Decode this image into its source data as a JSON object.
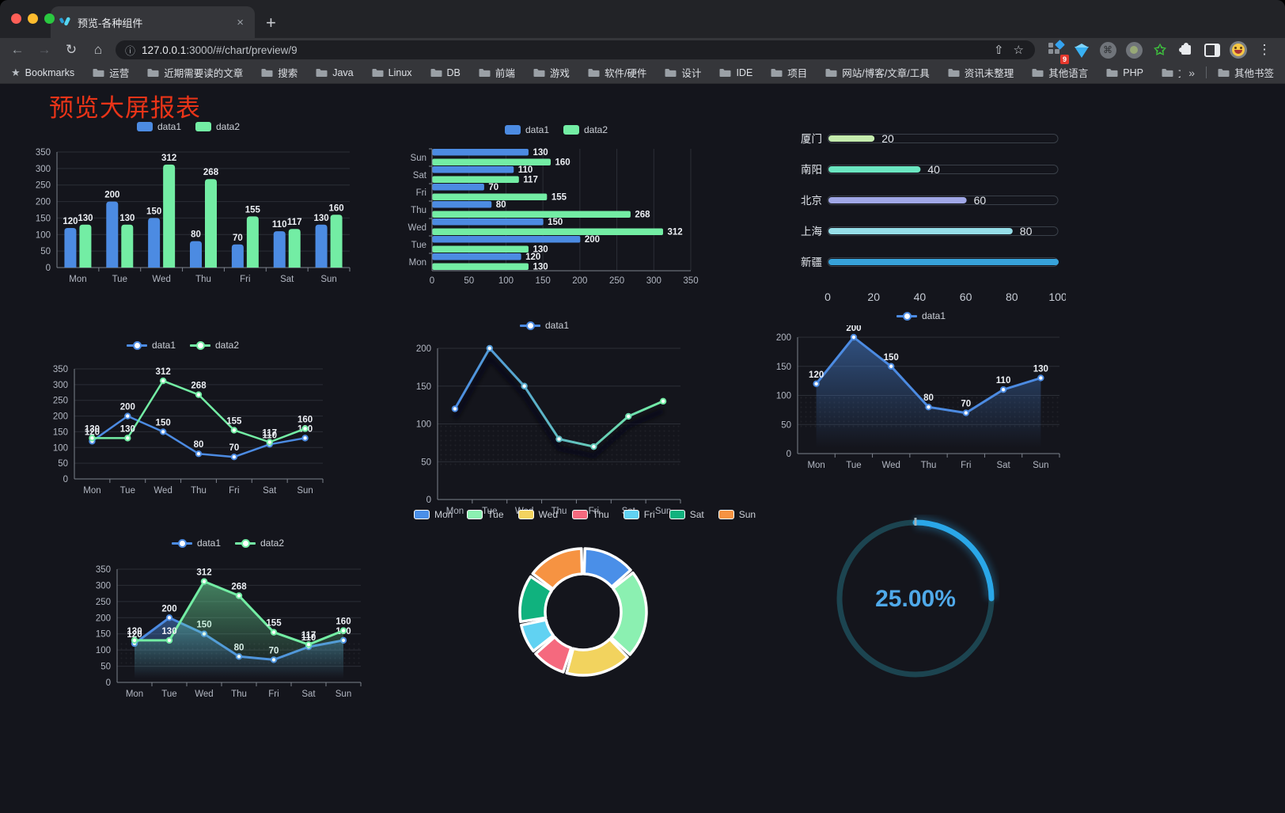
{
  "browser": {
    "tab": {
      "title": "预览-各种组件",
      "close_label": "×",
      "new_tab_label": "+"
    },
    "address": {
      "url_host": "127.0.0.1",
      "url_rest": ":3000/#/chart/preview/9"
    },
    "extensions_badge": "9",
    "bookmarks": {
      "label": "Bookmarks",
      "items": [
        "运营",
        "近期需要读的文章",
        "搜索",
        "Java",
        "Linux",
        "DB",
        "前端",
        "游戏",
        "软件/硬件",
        "设计",
        "IDE",
        "项目",
        "网站/博客/文章/工具",
        "资讯未整理",
        "其他语言",
        "PHP",
        "文件服务器"
      ],
      "overflow": "»",
      "other": "其他书签"
    }
  },
  "page": {
    "title": "预览大屏报表"
  },
  "colors": {
    "series_blue": "#4C8BE2",
    "series_green": "#73EDA4",
    "title_red": "#E93418",
    "gauge_blue": "#2AA7E8"
  },
  "chart_data": [
    {
      "id": "grouped-bar",
      "type": "bar",
      "categories": [
        "Mon",
        "Tue",
        "Wed",
        "Thu",
        "Fri",
        "Sat",
        "Sun"
      ],
      "series": [
        {
          "name": "data1",
          "color": "#4C8BE2",
          "values": [
            120,
            200,
            150,
            80,
            70,
            110,
            130
          ]
        },
        {
          "name": "data2",
          "color": "#73EDA4",
          "values": [
            130,
            130,
            312,
            268,
            155,
            117,
            160
          ]
        }
      ],
      "ylim": [
        0,
        350
      ],
      "yticks": [
        0,
        50,
        100,
        150,
        200,
        250,
        300,
        350
      ],
      "legend_position": "top",
      "data_labels": true
    },
    {
      "id": "horizontal-bar",
      "type": "bar-horizontal",
      "categories": [
        "Sun",
        "Sat",
        "Fri",
        "Thu",
        "Wed",
        "Tue",
        "Mon"
      ],
      "series": [
        {
          "name": "data1",
          "color": "#4C8BE2",
          "values": [
            130,
            110,
            70,
            80,
            150,
            200,
            120
          ]
        },
        {
          "name": "data2",
          "color": "#73EDA4",
          "values": [
            160,
            117,
            155,
            268,
            312,
            130,
            130
          ]
        }
      ],
      "xlim": [
        0,
        350
      ],
      "xticks": [
        0,
        50,
        100,
        150,
        200,
        250,
        300,
        350
      ],
      "legend_position": "top",
      "data_labels": true
    },
    {
      "id": "capsule-bar",
      "type": "capsule",
      "categories": [
        "厦门",
        "南阳",
        "北京",
        "上海",
        "新疆"
      ],
      "values": [
        20,
        40,
        60,
        80,
        100
      ],
      "colors": [
        "#c4ebad",
        "#6be6c1",
        "#a0a7e6",
        "#96dee8",
        "#37a2da"
      ],
      "xlim": [
        0,
        100
      ],
      "xticks": [
        0,
        20,
        40,
        60,
        80,
        100
      ]
    },
    {
      "id": "line-two-series",
      "type": "line",
      "categories": [
        "Mon",
        "Tue",
        "Wed",
        "Thu",
        "Fri",
        "Sat",
        "Sun"
      ],
      "series": [
        {
          "name": "data1",
          "color": "#4C8BE2",
          "values": [
            120,
            200,
            150,
            80,
            70,
            110,
            130
          ]
        },
        {
          "name": "data2",
          "color": "#73EDA4",
          "values": [
            130,
            130,
            312,
            268,
            155,
            117,
            160
          ]
        }
      ],
      "ylim": [
        0,
        350
      ],
      "yticks": [
        0,
        50,
        100,
        150,
        200,
        250,
        300,
        350
      ],
      "legend_position": "top",
      "data_labels": true
    },
    {
      "id": "gradient-line",
      "type": "line",
      "categories": [
        "Mon",
        "Tue",
        "Wed",
        "Thu",
        "Fri",
        "Sat",
        "Sun"
      ],
      "series": [
        {
          "name": "data1",
          "color": "#4C8BE2",
          "color_end": "#73EDA4",
          "values": [
            120,
            200,
            150,
            80,
            70,
            110,
            130
          ]
        }
      ],
      "ylim": [
        0,
        200
      ],
      "yticks": [
        0,
        50,
        100,
        150,
        200
      ],
      "legend_position": "top",
      "data_labels": false,
      "shadow": true
    },
    {
      "id": "blue-area-line",
      "type": "line",
      "categories": [
        "Mon",
        "Tue",
        "Wed",
        "Thu",
        "Fri",
        "Sat",
        "Sun"
      ],
      "series": [
        {
          "name": "data1",
          "color": "#4C8BE2",
          "area": true,
          "values": [
            120,
            200,
            150,
            80,
            70,
            110,
            130
          ]
        }
      ],
      "ylim": [
        0,
        200
      ],
      "yticks": [
        0,
        50,
        100,
        150,
        200
      ],
      "legend_position": "top",
      "data_labels": true
    },
    {
      "id": "two-series-area",
      "type": "line",
      "categories": [
        "Mon",
        "Tue",
        "Wed",
        "Thu",
        "Fri",
        "Sat",
        "Sun"
      ],
      "series": [
        {
          "name": "data1",
          "color": "#4C8BE2",
          "area": true,
          "values": [
            120,
            200,
            150,
            80,
            70,
            110,
            130
          ]
        },
        {
          "name": "data2",
          "color": "#73EDA4",
          "area": true,
          "values": [
            130,
            130,
            312,
            268,
            155,
            117,
            160
          ]
        }
      ],
      "ylim": [
        0,
        350
      ],
      "yticks": [
        0,
        50,
        100,
        150,
        200,
        250,
        300,
        350
      ],
      "legend_position": "top",
      "data_labels": true
    },
    {
      "id": "donut",
      "type": "pie",
      "categories": [
        "Mon",
        "Tue",
        "Wed",
        "Thu",
        "Fri",
        "Sat",
        "Sun"
      ],
      "values": [
        120,
        200,
        150,
        80,
        70,
        110,
        130
      ],
      "colors": [
        "#4A8FE8",
        "#8BF0B1",
        "#F2D35E",
        "#F5697E",
        "#61D2F2",
        "#10B27E",
        "#F69342"
      ],
      "donut": true,
      "legend_position": "top"
    },
    {
      "id": "gauge",
      "type": "gauge",
      "percent": 25,
      "label": "25.00%",
      "color": "#2AA7E8",
      "track_color": "#1C4450"
    }
  ]
}
